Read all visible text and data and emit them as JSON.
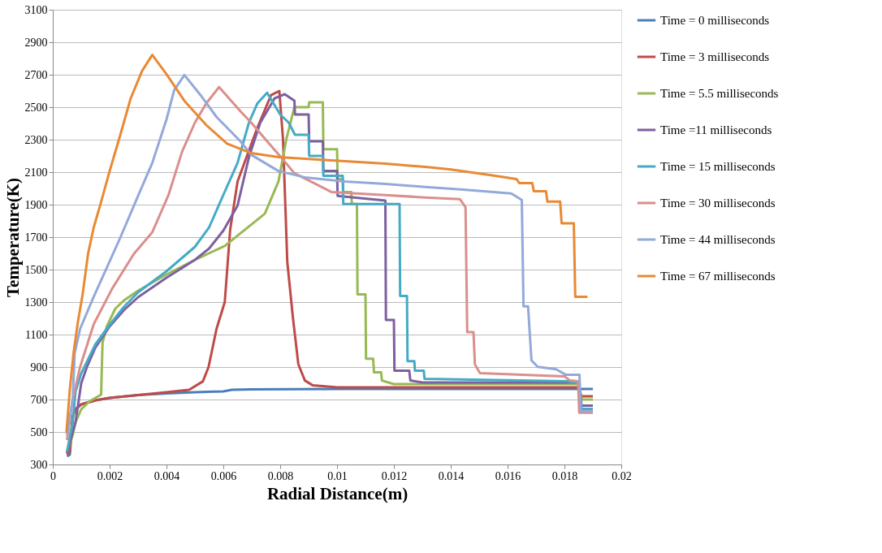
{
  "chart_data": {
    "type": "line",
    "xlabel": "Radial Distance(m)",
    "ylabel": "Temperature(K)",
    "xlim": [
      0,
      0.02
    ],
    "ylim": [
      300,
      3100
    ],
    "xticks": [
      0,
      0.002,
      0.004,
      0.006,
      0.008,
      0.01,
      0.012,
      0.014,
      0.016,
      0.018,
      0.02
    ],
    "yticks": [
      300,
      500,
      700,
      900,
      1100,
      1300,
      1500,
      1700,
      1900,
      2100,
      2300,
      2500,
      2700,
      2900,
      3100
    ],
    "grid": "y",
    "legend": "right",
    "marker": "none",
    "line_style": "solid",
    "series": [
      {
        "name": "Time = 0 milliseconds",
        "color": "#4a7ebb",
        "x": [
          0.0005,
          0.0006,
          0.0007,
          0.0008,
          0.001,
          0.0015,
          0.002,
          0.003,
          0.004,
          0.005,
          0.006,
          0.0063,
          0.007,
          0.01,
          0.0185,
          0.019
        ],
        "values": [
          350,
          360,
          600,
          640,
          670,
          695,
          710,
          728,
          738,
          745,
          750,
          760,
          763,
          765,
          765,
          765
        ]
      },
      {
        "name": "Time = 3 milliseconds",
        "color": "#be4b48",
        "x": [
          0.0005,
          0.0006,
          0.0007,
          0.0008,
          0.001,
          0.0015,
          0.002,
          0.003,
          0.004,
          0.0048,
          0.00528,
          0.00548,
          0.00576,
          0.00605,
          0.00624,
          0.0065,
          0.0072,
          0.00768,
          0.00797,
          0.0081,
          0.00825,
          0.00845,
          0.00864,
          0.00887,
          0.00915,
          0.01,
          0.0185,
          0.0186,
          0.019
        ],
        "values": [
          360,
          380,
          590,
          640,
          670,
          695,
          710,
          728,
          745,
          760,
          812,
          900,
          1135,
          1300,
          1745,
          2043,
          2375,
          2574,
          2600,
          2300,
          1547,
          1200,
          916,
          817,
          787,
          775,
          775,
          720,
          720
        ]
      },
      {
        "name": "Time = 5.5 milliseconds",
        "color": "#98b954",
        "x": [
          0.0005,
          0.0007,
          0.0008,
          0.001,
          0.0013,
          0.0017,
          0.00175,
          0.0019,
          0.0022,
          0.0025,
          0.003,
          0.004,
          0.005,
          0.00605,
          0.00746,
          0.00794,
          0.00822,
          0.0085,
          0.009,
          0.00902,
          0.0095,
          0.00952,
          0.01,
          0.01002,
          0.0102,
          0.01022,
          0.0105,
          0.01052,
          0.0107,
          0.01072,
          0.011,
          0.01102,
          0.01127,
          0.0113,
          0.01155,
          0.01158,
          0.012,
          0.0185,
          0.0186,
          0.019
        ],
        "values": [
          370,
          480,
          560,
          640,
          690,
          730,
          1050,
          1150,
          1260,
          1310,
          1370,
          1470,
          1560,
          1646,
          1844,
          2043,
          2306,
          2500,
          2500,
          2530,
          2530,
          2241,
          2241,
          2058,
          2058,
          1978,
          1978,
          1904,
          1904,
          1348,
          1348,
          951,
          951,
          867,
          867,
          817,
          795,
          795,
          700,
          700
        ]
      },
      {
        "name": "Time  =11 milliseconds",
        "color": "#7d60a0",
        "x": [
          0.0005,
          0.0007,
          0.0008,
          0.001,
          0.0012,
          0.0015,
          0.002,
          0.0025,
          0.003,
          0.004,
          0.005,
          0.0055,
          0.006,
          0.0065,
          0.0069,
          0.0073,
          0.0078,
          0.00816,
          0.0085,
          0.00852,
          0.009,
          0.00902,
          0.0095,
          0.00952,
          0.01,
          0.01002,
          0.0117,
          0.01172,
          0.012,
          0.01202,
          0.01254,
          0.01258,
          0.013,
          0.0185,
          0.0186,
          0.019
        ],
        "values": [
          370,
          500,
          560,
          800,
          900,
          1020,
          1150,
          1250,
          1330,
          1450,
          1560,
          1630,
          1740,
          1894,
          2192,
          2405,
          2554,
          2580,
          2540,
          2455,
          2455,
          2290,
          2290,
          2107,
          2107,
          1954,
          1925,
          1190,
          1190,
          877,
          877,
          817,
          805,
          805,
          663,
          663
        ]
      },
      {
        "name": "Time = 15 milliseconds",
        "color": "#46aac5",
        "x": [
          0.0005,
          0.0007,
          0.0008,
          0.001,
          0.0015,
          0.002,
          0.0025,
          0.003,
          0.004,
          0.005,
          0.0055,
          0.006,
          0.0065,
          0.0069,
          0.0072,
          0.00754,
          0.008,
          0.0083,
          0.00852,
          0.009,
          0.00902,
          0.0095,
          0.00952,
          0.0102,
          0.01022,
          0.0122,
          0.01222,
          0.01246,
          0.01248,
          0.01272,
          0.01274,
          0.01305,
          0.01308,
          0.0181,
          0.0185,
          0.0186,
          0.019
        ],
        "values": [
          380,
          560,
          750,
          860,
          1040,
          1160,
          1270,
          1360,
          1490,
          1640,
          1760,
          1960,
          2157,
          2405,
          2524,
          2589,
          2455,
          2405,
          2330,
          2330,
          2200,
          2200,
          2078,
          2078,
          1904,
          1904,
          1338,
          1338,
          936,
          936,
          877,
          877,
          827,
          812,
          800,
          643,
          643
        ]
      },
      {
        "name": "Time = 30 milliseconds",
        "color": "#da8f8c",
        "x": [
          0.0005,
          0.0007,
          0.00096,
          0.00144,
          0.00209,
          0.00285,
          0.0035,
          0.00407,
          0.00455,
          0.005,
          0.0054,
          0.00585,
          0.0066,
          0.00698,
          0.00754,
          0.0081,
          0.0085,
          0.00907,
          0.0098,
          0.0117,
          0.0131,
          0.01432,
          0.01452,
          0.01458,
          0.0148,
          0.01485,
          0.01503,
          0.0165,
          0.018,
          0.0182,
          0.01848,
          0.01852,
          0.019
        ],
        "values": [
          450,
          700,
          900,
          1164,
          1383,
          1596,
          1730,
          1959,
          2227,
          2405,
          2524,
          2624,
          2475,
          2405,
          2290,
          2177,
          2093,
          2043,
          1978,
          1959,
          1944,
          1934,
          1884,
          1115,
          1115,
          916,
          862,
          852,
          842,
          817,
          812,
          619,
          619
        ]
      },
      {
        "name": "Time  = 44 milliseconds",
        "color": "#93a9d9",
        "x": [
          0.0005,
          0.0007,
          0.00077,
          0.00096,
          0.00144,
          0.0019,
          0.00237,
          0.00294,
          0.0035,
          0.004,
          0.00427,
          0.00463,
          0.0052,
          0.00576,
          0.0066,
          0.00698,
          0.00794,
          0.00887,
          0.01028,
          0.0117,
          0.0131,
          0.01444,
          0.01613,
          0.0165,
          0.01656,
          0.01672,
          0.01684,
          0.01706,
          0.01771,
          0.01805,
          0.01853,
          0.01857,
          0.019
        ],
        "values": [
          480,
          700,
          986,
          1135,
          1333,
          1512,
          1695,
          1929,
          2157,
          2425,
          2604,
          2698,
          2574,
          2440,
          2290,
          2207,
          2107,
          2068,
          2043,
          2028,
          2009,
          1993,
          1969,
          1929,
          1274,
          1274,
          941,
          901,
          886,
          852,
          852,
          629,
          629
        ]
      },
      {
        "name": "Time = 67 milliseconds",
        "color": "#e98934",
        "x": [
          0.00048,
          0.0006,
          0.00073,
          0.00088,
          0.00105,
          0.00124,
          0.00144,
          0.00172,
          0.002,
          0.00237,
          0.00274,
          0.00314,
          0.0035,
          0.004,
          0.00463,
          0.0054,
          0.00613,
          0.00698,
          0.00794,
          0.0098,
          0.0117,
          0.0131,
          0.01396,
          0.01537,
          0.01631,
          0.01641,
          0.01687,
          0.01692,
          0.01735,
          0.0174,
          0.01785,
          0.0179,
          0.01833,
          0.01838,
          0.01881
        ],
        "values": [
          495,
          762,
          986,
          1174,
          1348,
          1596,
          1760,
          1929,
          2107,
          2326,
          2554,
          2723,
          2822,
          2703,
          2539,
          2390,
          2276,
          2217,
          2192,
          2172,
          2152,
          2132,
          2117,
          2083,
          2058,
          2033,
          2033,
          1983,
          1983,
          1919,
          1919,
          1785,
          1785,
          1333,
          1333
        ]
      }
    ]
  }
}
